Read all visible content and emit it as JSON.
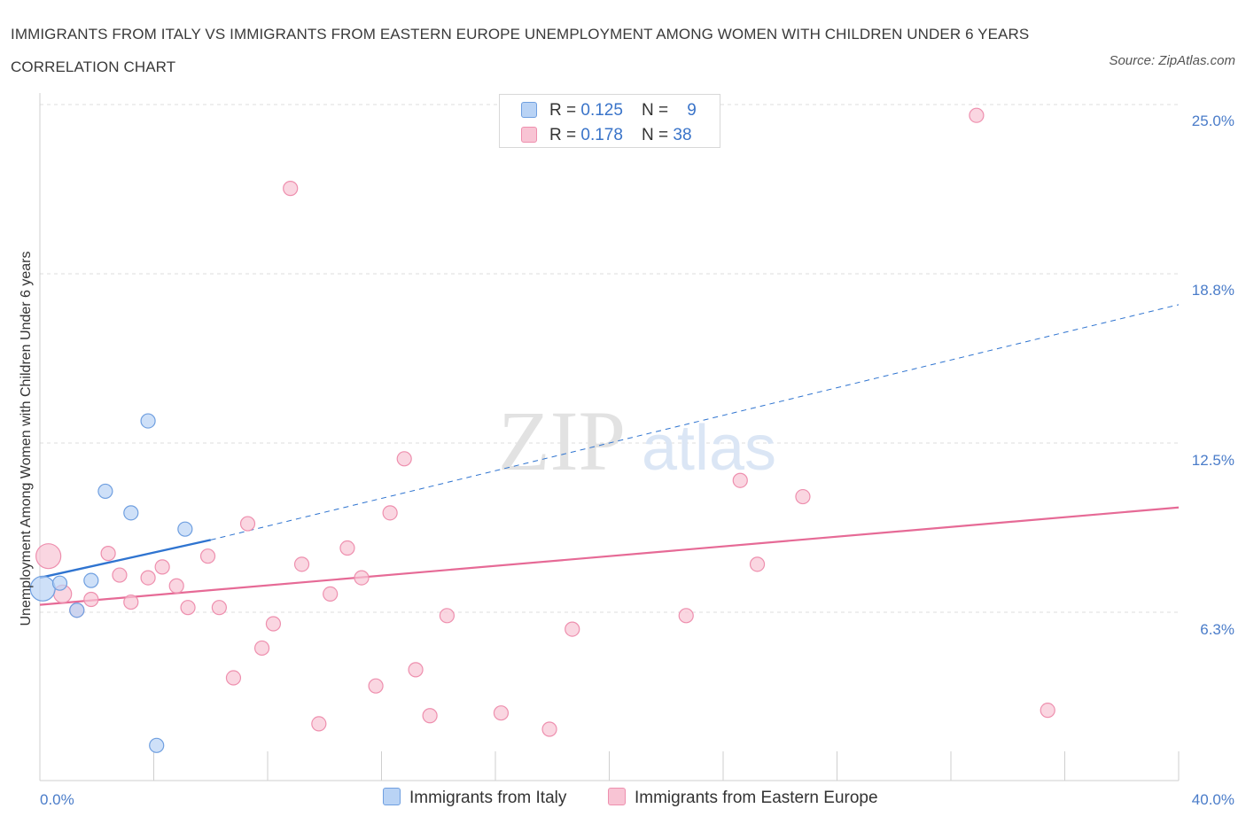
{
  "title": "IMMIGRANTS FROM ITALY VS IMMIGRANTS FROM EASTERN EUROPE UNEMPLOYMENT AMONG WOMEN WITH CHILDREN UNDER 6 YEARS CORRELATION CHART",
  "source": "Source: ZipAtlas.com",
  "colors": {
    "italy_fill": "#b9d3f5",
    "italy_stroke": "#6f9fe0",
    "italy_line": "#2f74d0",
    "ee_fill": "#f8c4d4",
    "ee_stroke": "#ee8fae",
    "ee_line": "#e66a96",
    "grid": "#dddddd",
    "tick_label": "#4a7cc9"
  },
  "legend": {
    "rows": [
      {
        "r_label": "R = ",
        "r_value": "0.125",
        "n_label": "N = ",
        "n_value": "9"
      },
      {
        "r_label": "R = ",
        "r_value": "0.178",
        "n_label": "N = ",
        "n_value": "38"
      }
    ]
  },
  "chart_data": {
    "type": "scatter",
    "title": "IMMIGRANTS FROM ITALY VS IMMIGRANTS FROM EASTERN EUROPE UNEMPLOYMENT AMONG WOMEN WITH CHILDREN UNDER 6 YEARS CORRELATION CHART",
    "xlabel": "",
    "ylabel": "Unemployment Among Women with Children Under 6 years",
    "xlim": [
      0,
      40
    ],
    "ylim": [
      0,
      25
    ],
    "x_tick_labels": [
      "0.0%",
      "40.0%"
    ],
    "y_ticks": [
      6.3,
      12.5,
      18.8,
      25.0
    ],
    "y_tick_labels": [
      "6.3%",
      "12.5%",
      "18.8%",
      "25.0%"
    ],
    "watermark": {
      "zip": "ZIP",
      "atlas": "atlas"
    },
    "series": [
      {
        "name": "Immigrants from Italy",
        "R": 0.125,
        "N": 9,
        "points": [
          {
            "x": 0.1,
            "y": 7.1,
            "size": 14
          },
          {
            "x": 0.7,
            "y": 7.3,
            "size": 8
          },
          {
            "x": 1.3,
            "y": 6.3,
            "size": 8
          },
          {
            "x": 1.8,
            "y": 7.4,
            "size": 8
          },
          {
            "x": 2.3,
            "y": 10.7,
            "size": 8
          },
          {
            "x": 3.2,
            "y": 9.9,
            "size": 8
          },
          {
            "x": 3.8,
            "y": 13.3,
            "size": 8
          },
          {
            "x": 4.1,
            "y": 1.3,
            "size": 8
          },
          {
            "x": 5.1,
            "y": 9.3,
            "size": 8
          }
        ],
        "trend": {
          "x0": 0,
          "y0": 7.5,
          "x1": 6.0,
          "y1": 8.9,
          "dashed_to_x": 40,
          "dashed_to_y": 17.6
        }
      },
      {
        "name": "Immigrants from Eastern Europe",
        "R": 0.178,
        "N": 38,
        "points": [
          {
            "x": 0.3,
            "y": 8.3,
            "size": 14
          },
          {
            "x": 0.8,
            "y": 6.9,
            "size": 10
          },
          {
            "x": 1.3,
            "y": 6.3,
            "size": 8
          },
          {
            "x": 1.8,
            "y": 6.7,
            "size": 8
          },
          {
            "x": 2.4,
            "y": 8.4,
            "size": 8
          },
          {
            "x": 2.8,
            "y": 7.6,
            "size": 8
          },
          {
            "x": 3.2,
            "y": 6.6,
            "size": 8
          },
          {
            "x": 3.8,
            "y": 7.5,
            "size": 8
          },
          {
            "x": 4.3,
            "y": 7.9,
            "size": 8
          },
          {
            "x": 4.8,
            "y": 7.2,
            "size": 8
          },
          {
            "x": 5.2,
            "y": 6.4,
            "size": 8
          },
          {
            "x": 5.9,
            "y": 8.3,
            "size": 8
          },
          {
            "x": 6.3,
            "y": 6.4,
            "size": 8
          },
          {
            "x": 6.8,
            "y": 3.8,
            "size": 8
          },
          {
            "x": 7.3,
            "y": 9.5,
            "size": 8
          },
          {
            "x": 7.8,
            "y": 4.9,
            "size": 8
          },
          {
            "x": 8.2,
            "y": 5.8,
            "size": 8
          },
          {
            "x": 8.8,
            "y": 21.9,
            "size": 8
          },
          {
            "x": 9.2,
            "y": 8.0,
            "size": 8
          },
          {
            "x": 9.8,
            "y": 2.1,
            "size": 8
          },
          {
            "x": 10.2,
            "y": 6.9,
            "size": 8
          },
          {
            "x": 10.8,
            "y": 8.6,
            "size": 8
          },
          {
            "x": 11.3,
            "y": 7.5,
            "size": 8
          },
          {
            "x": 11.8,
            "y": 3.5,
            "size": 8
          },
          {
            "x": 12.3,
            "y": 9.9,
            "size": 8
          },
          {
            "x": 12.8,
            "y": 11.9,
            "size": 8
          },
          {
            "x": 13.2,
            "y": 4.1,
            "size": 8
          },
          {
            "x": 13.7,
            "y": 2.4,
            "size": 8
          },
          {
            "x": 14.3,
            "y": 6.1,
            "size": 8
          },
          {
            "x": 16.2,
            "y": 2.5,
            "size": 8
          },
          {
            "x": 17.9,
            "y": 1.9,
            "size": 8
          },
          {
            "x": 18.7,
            "y": 5.6,
            "size": 8
          },
          {
            "x": 22.7,
            "y": 6.1,
            "size": 8
          },
          {
            "x": 24.6,
            "y": 11.1,
            "size": 8
          },
          {
            "x": 25.2,
            "y": 8.0,
            "size": 8
          },
          {
            "x": 26.8,
            "y": 10.5,
            "size": 8
          },
          {
            "x": 32.9,
            "y": 24.6,
            "size": 8
          },
          {
            "x": 35.4,
            "y": 2.6,
            "size": 8
          }
        ],
        "trend": {
          "x0": 0,
          "y0": 6.5,
          "x1": 40,
          "y1": 10.1
        }
      }
    ]
  }
}
